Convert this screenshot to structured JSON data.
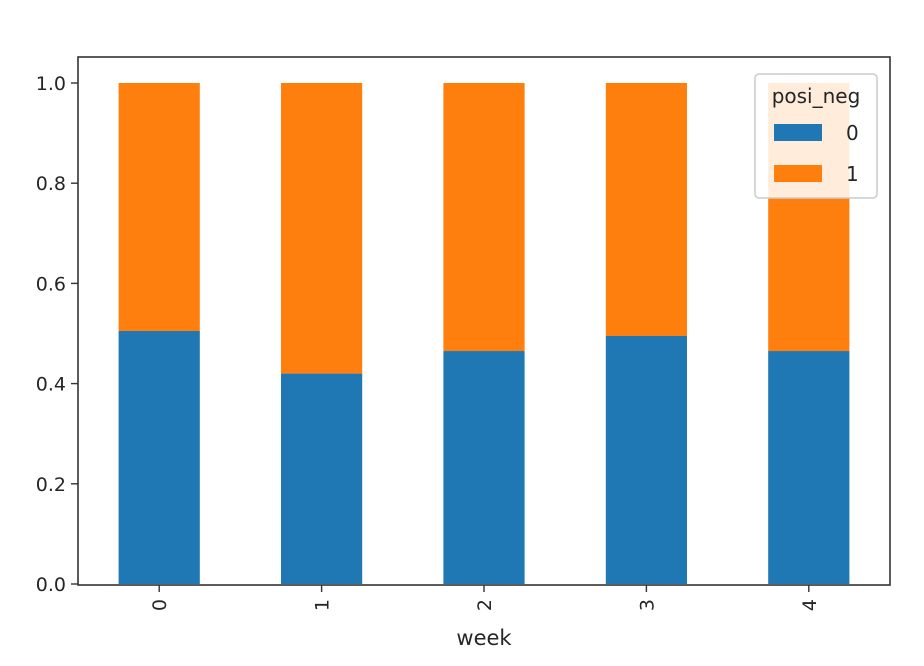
{
  "chart_data": {
    "type": "bar",
    "stacked": true,
    "categories": [
      "0",
      "1",
      "2",
      "3",
      "4"
    ],
    "series": [
      {
        "name": "0",
        "values": [
          0.505,
          0.42,
          0.465,
          0.495,
          0.465
        ]
      },
      {
        "name": "1",
        "values": [
          0.495,
          0.58,
          0.535,
          0.505,
          0.535
        ]
      }
    ],
    "xlabel": "week",
    "ylabel": "",
    "ylim": [
      0,
      1.0
    ],
    "yticks": [
      "0.0",
      "0.2",
      "0.4",
      "0.6",
      "0.8",
      "1.0"
    ],
    "legend_title": "posi_neg",
    "legend_position": "top-right",
    "grid": false,
    "colors": [
      "#1f77b4",
      "#ff7f0e"
    ]
  }
}
